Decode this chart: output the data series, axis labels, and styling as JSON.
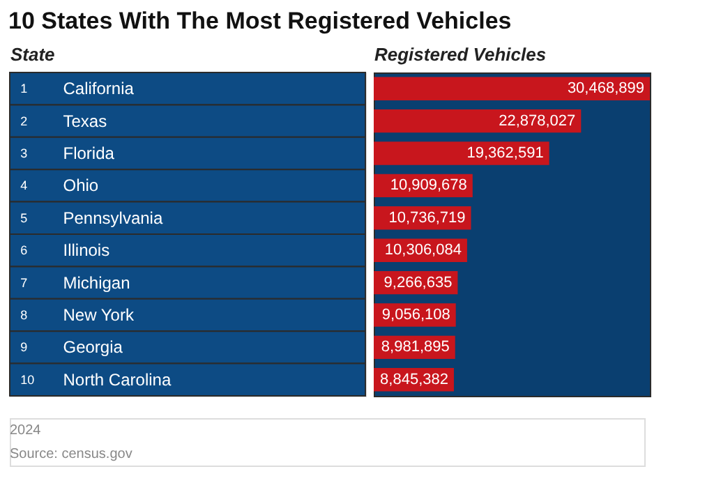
{
  "chart_data": {
    "type": "bar",
    "orientation": "horizontal",
    "title": "10 States With The Most Registered Vehicles",
    "ylabel": "State",
    "xlabel": "Registered Vehicles",
    "categories": [
      "California",
      "Texas",
      "Florida",
      "Ohio",
      "Pennsylvania",
      "Illinois",
      "Michigan",
      "New York",
      "Georgia",
      "North Carolina"
    ],
    "values": [
      30468899,
      22878027,
      19362591,
      10909678,
      10736719,
      10306084,
      9266635,
      9056108,
      8981895,
      8845382
    ],
    "value_labels": [
      "30,468,899",
      "22,878,027",
      "19,362,591",
      "10,909,678",
      "10,736,719",
      "10,306,084",
      "9,266,635",
      "9,056,108",
      "8,981,895",
      "8,845,382"
    ],
    "color": "#c8161d",
    "annotations": [
      "1",
      "2",
      "3",
      "4",
      "5",
      "6",
      "7",
      "8",
      "9",
      "10",
      "2024",
      "Source: census.gov"
    ]
  }
}
